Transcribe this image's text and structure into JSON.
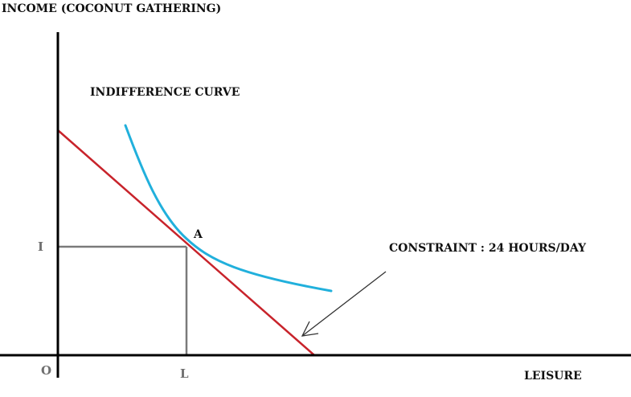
{
  "labels": {
    "y_axis": "INCOME (COCONUT GATHERING)",
    "x_axis": "LEISURE",
    "origin": "O",
    "income_level": "I",
    "leisure_level": "L",
    "curve": "INDIFFERENCE CURVE",
    "tangent_point": "A",
    "constraint": "CONSTRAINT : 24 HOURS/DAY"
  },
  "colors": {
    "axes": "#000000",
    "budget_line": "#c8232b",
    "indifference_curve": "#21b0dc",
    "guide_lines": "#7a7a7a",
    "arrow": "#333333",
    "level_labels": "#6f6f6f"
  }
}
